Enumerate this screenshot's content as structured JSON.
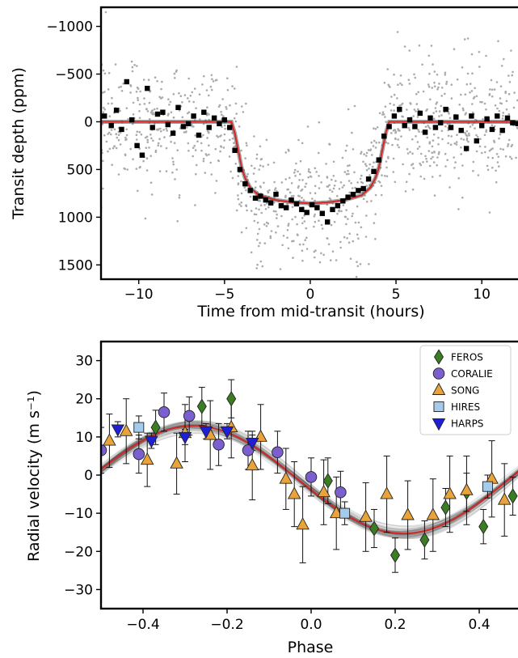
{
  "chart_data": [
    {
      "type": "scatter",
      "xlabel": "Time from mid-transit (hours)",
      "ylabel": "Transit depth (ppm)",
      "xlim": [
        -12.2,
        12.3
      ],
      "ylim": [
        1650,
        -1200
      ],
      "y_inverted": true,
      "xticks": [
        -10,
        -5,
        0,
        5,
        10
      ],
      "yticks": [
        -1000,
        -500,
        0,
        500,
        1000,
        1500
      ],
      "model": {
        "name": "",
        "color": "#d62728",
        "x": [
          -12.2,
          -4.6,
          -4.4,
          -4.2,
          -4.0,
          -3.8,
          -3.5,
          -3.0,
          -2.0,
          -1.0,
          0.0,
          1.0,
          2.0,
          3.0,
          3.5,
          3.8,
          4.0,
          4.2,
          4.4,
          4.6,
          12.3
        ],
        "y": [
          0,
          0,
          120,
          300,
          480,
          590,
          690,
          770,
          820,
          845,
          855,
          845,
          820,
          770,
          690,
          590,
          480,
          300,
          120,
          0,
          0
        ]
      },
      "binned_points": {
        "color": "#000000",
        "x": [
          -12.0,
          -11.6,
          -11.3,
          -11.0,
          -10.7,
          -10.4,
          -10.1,
          -9.8,
          -9.5,
          -9.2,
          -8.9,
          -8.6,
          -8.3,
          -8.0,
          -7.7,
          -7.4,
          -7.1,
          -6.8,
          -6.5,
          -6.2,
          -5.9,
          -5.6,
          -5.3,
          -5.0,
          -4.7,
          -4.4,
          -4.1,
          -3.8,
          -3.5,
          -3.2,
          -2.9,
          -2.6,
          -2.3,
          -2.0,
          -1.7,
          -1.4,
          -1.1,
          -0.8,
          -0.5,
          -0.2,
          0.1,
          0.4,
          0.7,
          1.0,
          1.3,
          1.6,
          1.9,
          2.2,
          2.5,
          2.8,
          3.1,
          3.4,
          3.7,
          4.0,
          4.3,
          4.6,
          4.9,
          5.2,
          5.5,
          5.8,
          6.1,
          6.4,
          6.7,
          7.0,
          7.3,
          7.6,
          7.9,
          8.2,
          8.5,
          8.8,
          9.1,
          9.4,
          9.7,
          10.0,
          10.3,
          10.6,
          10.9,
          11.2,
          11.5,
          11.8,
          12.1
        ],
        "y": [
          -60,
          40,
          -120,
          80,
          -420,
          -20,
          250,
          350,
          -350,
          60,
          -80,
          -100,
          30,
          120,
          -150,
          50,
          20,
          -60,
          140,
          -100,
          60,
          -40,
          20,
          -20,
          60,
          300,
          500,
          650,
          720,
          800,
          780,
          820,
          850,
          760,
          880,
          900,
          820,
          860,
          920,
          950,
          870,
          900,
          960,
          1050,
          920,
          880,
          830,
          790,
          760,
          720,
          700,
          600,
          520,
          400,
          150,
          50,
          -60,
          -130,
          40,
          -20,
          50,
          -90,
          110,
          -40,
          60,
          10,
          -130,
          60,
          -50,
          90,
          280,
          -60,
          200,
          40,
          -30,
          80,
          -60,
          90,
          -40,
          10,
          20
        ]
      },
      "raw_points_color": "#aaaaaa"
    },
    {
      "type": "scatter",
      "xlabel": "Phase",
      "ylabel": "Radial velocity (m s⁻¹)",
      "xlim": [
        -0.5,
        0.5
      ],
      "ylim": [
        -35,
        35
      ],
      "xticks": [
        -0.4,
        -0.2,
        0.0,
        0.2,
        0.4
      ],
      "yticks": [
        -30,
        -20,
        -10,
        0,
        10,
        20,
        30
      ],
      "legend_position": "top-right",
      "model": {
        "name": "",
        "color": "#d62728",
        "amplitude": 14.1,
        "offset": -1.2,
        "peak_phase": -0.28
      },
      "series": [
        {
          "name": "FEROS",
          "marker": "diamond",
          "color": "#3b7d23",
          "x": [
            -0.26,
            -0.19,
            -0.37,
            0.04,
            0.15,
            0.2,
            0.27,
            0.32,
            0.37,
            0.41,
            0.48
          ],
          "y": [
            18.0,
            20.0,
            12.5,
            -1.5,
            -14.0,
            -21.0,
            -17.0,
            -8.5,
            -4.5,
            -13.5,
            -5.5
          ],
          "err": [
            5.0,
            5.0,
            4.5,
            6.0,
            5.0,
            4.5,
            5.0,
            5.0,
            5.0,
            4.5,
            5.0
          ]
        },
        {
          "name": "CORALIE",
          "marker": "circle",
          "color": "#7b5fcf",
          "x": [
            -0.5,
            -0.41,
            -0.35,
            -0.29,
            -0.22,
            -0.15,
            -0.08,
            0.0,
            0.07
          ],
          "y": [
            6.5,
            5.5,
            16.5,
            15.5,
            8.0,
            6.5,
            6.0,
            -0.5,
            -4.5
          ],
          "err": [
            6.0,
            5.0,
            5.0,
            5.0,
            5.5,
            5.0,
            5.5,
            5.0,
            5.5
          ]
        },
        {
          "name": "SONG",
          "marker": "triangle-up",
          "color": "#e8a33a",
          "x": [
            -0.48,
            -0.44,
            -0.39,
            -0.32,
            -0.3,
            -0.24,
            -0.19,
            -0.14,
            -0.12,
            -0.06,
            -0.04,
            -0.02,
            0.03,
            0.06,
            0.13,
            0.18,
            0.23,
            0.29,
            0.33,
            0.37,
            0.43,
            0.46
          ],
          "y": [
            9.0,
            11.5,
            4.0,
            3.0,
            11.0,
            10.5,
            12.5,
            2.5,
            10.0,
            -1.0,
            -5.0,
            -13.0,
            -4.5,
            -10.0,
            -11.0,
            -5.0,
            -10.5,
            -10.5,
            -5.0,
            -4.0,
            -1.0,
            -6.5
          ],
          "err": [
            7.0,
            8.5,
            7.0,
            8.0,
            7.5,
            9.0,
            8.0,
            9.0,
            8.5,
            8.0,
            8.5,
            10.0,
            8.5,
            9.5,
            9.0,
            10.0,
            9.0,
            9.5,
            10.0,
            9.0,
            10.0,
            9.5
          ]
        },
        {
          "name": "HIRES",
          "marker": "square",
          "color": "#a4cbec",
          "x": [
            -0.41,
            0.08,
            0.42
          ],
          "y": [
            12.5,
            -10.0,
            -3.0
          ],
          "err": [
            3.0,
            3.0,
            3.0
          ]
        },
        {
          "name": "HARPS",
          "marker": "triangle-down",
          "color": "#1f1fd6",
          "x": [
            -0.46,
            -0.38,
            -0.3,
            -0.25,
            -0.2,
            -0.14
          ],
          "y": [
            12.0,
            9.0,
            10.0,
            11.5,
            11.5,
            8.5
          ],
          "err": [
            2.0,
            2.0,
            2.0,
            2.0,
            2.0,
            2.0
          ]
        }
      ]
    }
  ]
}
